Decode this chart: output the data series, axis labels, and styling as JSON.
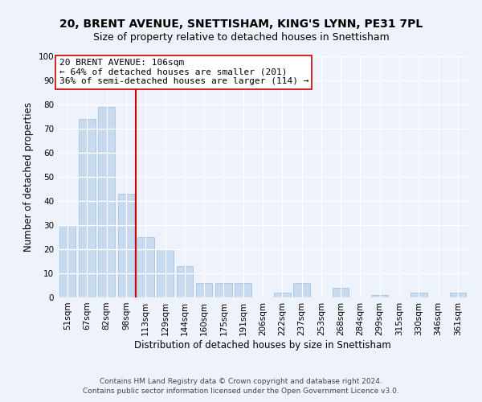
{
  "title_line1": "20, BRENT AVENUE, SNETTISHAM, KING'S LYNN, PE31 7PL",
  "title_line2": "Size of property relative to detached houses in Snettisham",
  "xlabel": "Distribution of detached houses by size in Snettisham",
  "ylabel": "Number of detached properties",
  "footer_line1": "Contains HM Land Registry data © Crown copyright and database right 2024.",
  "footer_line2": "Contains public sector information licensed under the Open Government Licence v3.0.",
  "categories": [
    "51sqm",
    "67sqm",
    "82sqm",
    "98sqm",
    "113sqm",
    "129sqm",
    "144sqm",
    "160sqm",
    "175sqm",
    "191sqm",
    "206sqm",
    "222sqm",
    "237sqm",
    "253sqm",
    "268sqm",
    "284sqm",
    "299sqm",
    "315sqm",
    "330sqm",
    "346sqm",
    "361sqm"
  ],
  "values": [
    30,
    74,
    79,
    43,
    25,
    20,
    13,
    6,
    6,
    6,
    0,
    2,
    6,
    0,
    4,
    0,
    1,
    0,
    2,
    0,
    2
  ],
  "bar_color": "#c8daf0",
  "bar_edge_color": "#a8c4e0",
  "vline_x_index": 3.5,
  "vline_color": "#cc0000",
  "annotation_text": "20 BRENT AVENUE: 106sqm\n← 64% of detached houses are smaller (201)\n36% of semi-detached houses are larger (114) →",
  "annotation_box_facecolor": "#ffffff",
  "annotation_box_edgecolor": "#cc0000",
  "ylim": [
    0,
    100
  ],
  "yticks": [
    0,
    10,
    20,
    30,
    40,
    50,
    60,
    70,
    80,
    90,
    100
  ],
  "background_color": "#eef2fa",
  "plot_bg_color": "#eef2fa",
  "grid_color": "#ffffff",
  "title_fontsize": 10,
  "subtitle_fontsize": 9,
  "axis_label_fontsize": 8.5,
  "tick_fontsize": 7.5,
  "annotation_fontsize": 8,
  "footer_fontsize": 6.5,
  "footer_color": "#444444"
}
